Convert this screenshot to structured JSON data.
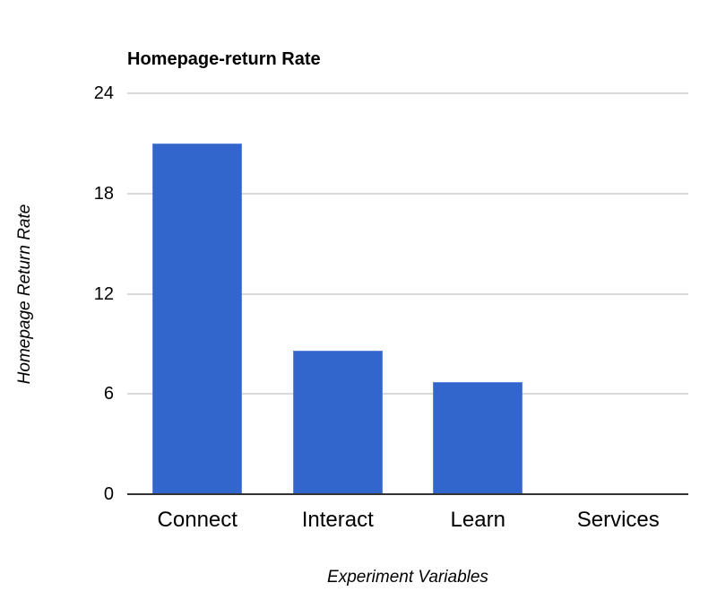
{
  "chart_data": {
    "type": "bar",
    "title": "Homepage-return Rate",
    "categories": [
      "Connect",
      "Interact",
      "Learn",
      "Services"
    ],
    "values": [
      21,
      8.6,
      6.7,
      0
    ],
    "xlabel": "Experiment Variables",
    "ylabel": "Homepage Return Rate",
    "ylim": [
      0,
      24
    ],
    "yticks": [
      0,
      6,
      12,
      18,
      24
    ],
    "grid": true,
    "legend_position": "none",
    "bar_color": "#3366cc",
    "bar_border_color": "#5c84da",
    "gridline_color": "#dadada",
    "baseline_color": "#333333",
    "text_color": "#000000",
    "background_color": "#ffffff"
  }
}
